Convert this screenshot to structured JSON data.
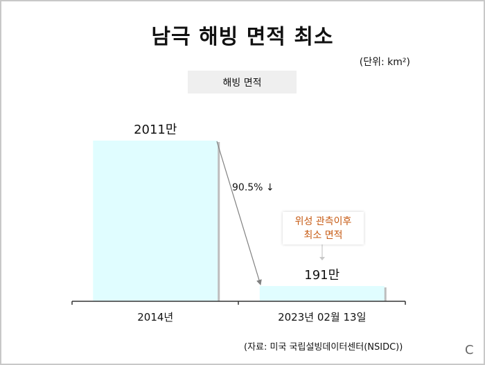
{
  "chart_data": {
    "type": "bar",
    "title": "남극 해빙 면적 최소",
    "unit_label": "(단위: km²)",
    "legend": [
      "해빙 면적"
    ],
    "categories": [
      "2014년",
      "2023년 02월 13일"
    ],
    "values": [
      20110000,
      1910000
    ],
    "value_labels": [
      "2011만",
      "191만"
    ],
    "change_annotation": "90.5% ↓",
    "callout": [
      "위성 관측이후",
      "최소 면적"
    ],
    "bar_color": "#e0fdff",
    "callout_color": "#c65911",
    "source": "(자료:  미국 국립설빙데이터센터(NSIDC))",
    "corner_mark": "C"
  }
}
